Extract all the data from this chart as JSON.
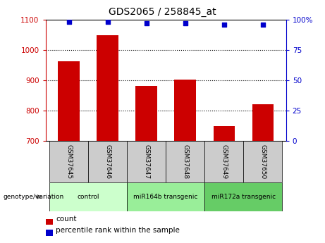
{
  "title": "GDS2065 / 258845_at",
  "samples": [
    "GSM37645",
    "GSM37646",
    "GSM37647",
    "GSM37648",
    "GSM37649",
    "GSM37650"
  ],
  "bar_values": [
    963,
    1048,
    882,
    903,
    748,
    820
  ],
  "percentile_values": [
    98,
    98,
    97,
    97,
    96,
    96
  ],
  "bar_color": "#cc0000",
  "percentile_color": "#0000cc",
  "ylim_left": [
    700,
    1100
  ],
  "ylim_right": [
    0,
    100
  ],
  "yticks_left": [
    700,
    800,
    900,
    1000,
    1100
  ],
  "yticks_right": [
    0,
    25,
    50,
    75,
    100
  ],
  "yticklabels_right": [
    "0",
    "25",
    "50",
    "75",
    "100%"
  ],
  "groups": [
    {
      "label": "control",
      "indices": [
        0,
        1
      ],
      "color": "#ccffcc"
    },
    {
      "label": "miR164b transgenic",
      "indices": [
        2,
        3
      ],
      "color": "#99ee99"
    },
    {
      "label": "miR172a transgenic",
      "indices": [
        4,
        5
      ],
      "color": "#66cc66"
    }
  ],
  "left_axis_color": "#cc0000",
  "right_axis_color": "#0000cc",
  "grid_color": "#000000",
  "sample_box_color": "#cccccc",
  "genotype_label": "genotype/variation",
  "legend_count_label": "count",
  "legend_percentile_label": "percentile rank within the sample"
}
